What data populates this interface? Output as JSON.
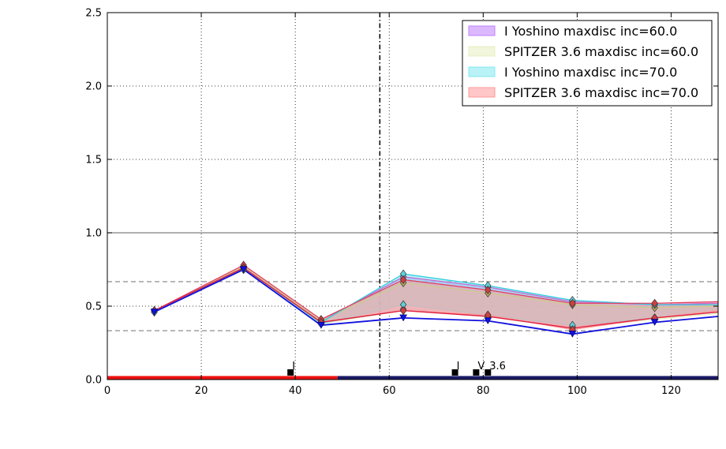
{
  "chart_data": {
    "type": "line",
    "title": "",
    "xlabel": "",
    "ylabel": "",
    "xlim": [
      0,
      130
    ],
    "ylim": [
      0,
      2.5
    ],
    "x_ticks": [
      0,
      20,
      40,
      60,
      80,
      100,
      120
    ],
    "y_ticks": [
      0.0,
      0.5,
      1.0,
      1.5,
      2.0,
      2.5
    ],
    "x_tick_labels": [
      "0",
      "20",
      "40",
      "60",
      "80",
      "100",
      "120"
    ],
    "y_tick_labels": [
      "0.0",
      "0.5",
      "1.0",
      "1.5",
      "2.0",
      "2.5"
    ],
    "grid": true,
    "legend_position": "top-right",
    "x": [
      10,
      29,
      45.5,
      63,
      81,
      99,
      116.5,
      130
    ],
    "series": [
      {
        "name": "I Yoshino maxdisc inc=60.0",
        "color": "#bf7fff",
        "upper": [
          0.47,
          0.77,
          0.4,
          0.7,
          0.63,
          0.53,
          0.51,
          0.52
        ],
        "lower": [
          0.46,
          0.75,
          0.38,
          0.48,
          0.43,
          0.36,
          0.42,
          0.46
        ]
      },
      {
        "name": "SPITZER 3.6 maxdisc inc=60.0",
        "color": "#e6efc0",
        "upper": [
          0.47,
          0.77,
          0.4,
          0.66,
          0.59,
          0.51,
          0.49,
          0.5
        ],
        "lower": [
          0.46,
          0.75,
          0.38,
          0.47,
          0.43,
          0.35,
          0.41,
          0.45
        ]
      },
      {
        "name": "I Yoshino maxdisc inc=70.0",
        "color": "#80e8f0",
        "upper": [
          0.47,
          0.76,
          0.39,
          0.72,
          0.64,
          0.54,
          0.51,
          0.51
        ],
        "lower": [
          0.46,
          0.75,
          0.38,
          0.51,
          0.44,
          0.37,
          0.42,
          0.47
        ]
      },
      {
        "name": "SPITZER 3.6 maxdisc inc=70.0",
        "color": "#ff9999",
        "upper": [
          0.47,
          0.78,
          0.41,
          0.68,
          0.61,
          0.52,
          0.52,
          0.53
        ],
        "lower": [
          0.47,
          0.76,
          0.39,
          0.47,
          0.44,
          0.34,
          0.42,
          0.47
        ]
      }
    ],
    "blue_line": [
      0.46,
      0.75,
      0.37,
      0.42,
      0.4,
      0.31,
      0.39,
      0.43
    ],
    "lower_red_line": [
      0.47,
      0.76,
      0.39,
      0.47,
      0.43,
      0.35,
      0.42,
      0.46
    ],
    "hlines_dashed": [
      0.333,
      0.667
    ],
    "hline_solid": 1.0,
    "vline_dashdot": 58,
    "bottom_bar": {
      "red_end": 49,
      "navy_start": 49
    },
    "markers": [
      {
        "x": 39,
        "label": "I"
      },
      {
        "x": 74,
        "label": "I"
      },
      {
        "x": 78.5,
        "label": "V"
      },
      {
        "x": 81,
        "label": "3.6"
      }
    ]
  }
}
